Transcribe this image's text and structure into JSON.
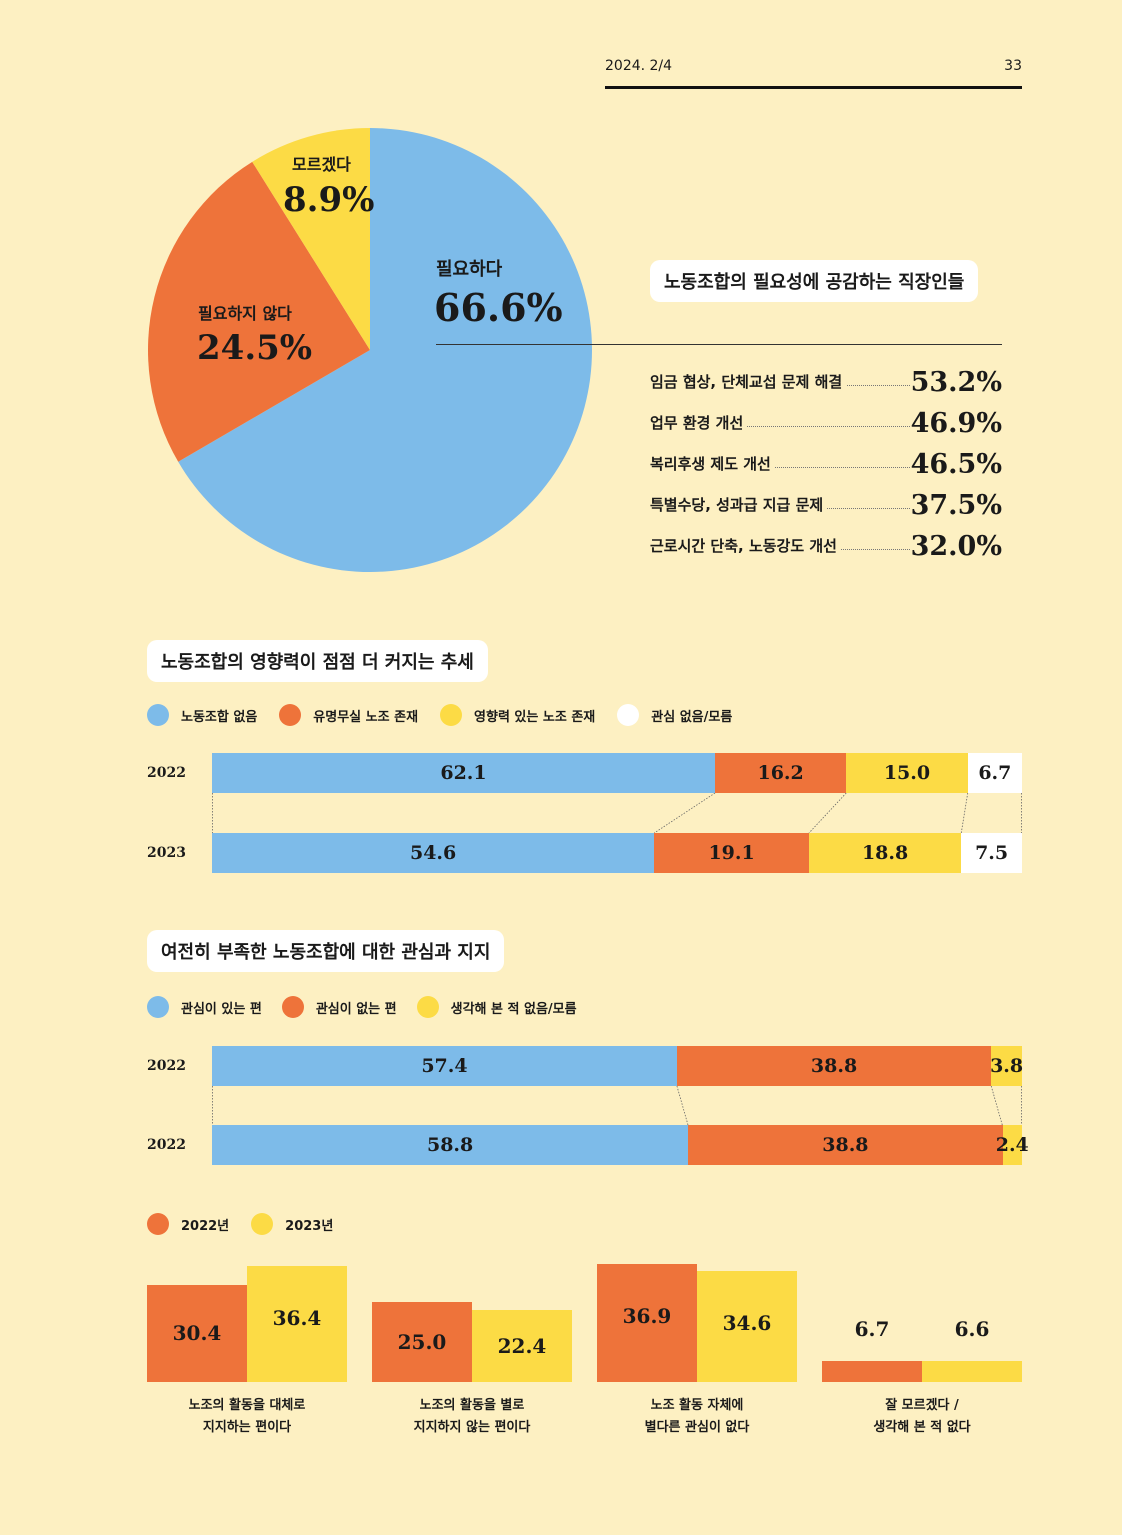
{
  "header": {
    "date": "2024. 2/4",
    "page": "33"
  },
  "colors": {
    "blue": "#7dbbe9",
    "orange": "#ee733a",
    "yellow": "#fcdb45",
    "white": "#ffffff"
  },
  "pie": {
    "title": "노동조합의 필요성에 공감하는 직장인들",
    "chart_type": "pie",
    "slices": [
      {
        "label": "필요하다",
        "display": "66.6%",
        "value": 66.6,
        "color": "#7dbbe9"
      },
      {
        "label": "필요하지 않다",
        "display": "24.5%",
        "value": 24.5,
        "color": "#ee733a"
      },
      {
        "label": "모르겠다",
        "display": "8.9%",
        "value": 8.9,
        "color": "#fcdb45"
      }
    ]
  },
  "reasons": [
    {
      "label": "임금 협상, 단체교섭 문제 해결",
      "display": "53.2%"
    },
    {
      "label": "업무 환경 개선",
      "display": "46.9%"
    },
    {
      "label": "복리후생 제도 개선",
      "display": "46.5%"
    },
    {
      "label": "특별수당, 성과급 지급 문제",
      "display": "37.5%"
    },
    {
      "label": "근로시간 단축, 노동강도 개선",
      "display": "32.0%"
    }
  ],
  "influence": {
    "title": "노동조합의 영향력이 점점 더 커지는 추세",
    "chart_type": "stacked-bar",
    "legend": [
      "노동조합 없음",
      "유명무실 노조 존재",
      "영향력 있는  노조 존재",
      "관심 없음/모름"
    ],
    "rows": [
      {
        "year": "2022",
        "values": [
          62.1,
          16.2,
          15.0,
          6.7
        ],
        "labels": [
          "62.1",
          "16.2",
          "15.0",
          "6.7"
        ]
      },
      {
        "year": "2023",
        "values": [
          54.6,
          19.1,
          18.8,
          7.5
        ],
        "labels": [
          "54.6",
          "19.1",
          "18.8",
          "7.5"
        ]
      }
    ]
  },
  "interest": {
    "title": "여전히 부족한 노동조합에 대한 관심과 지지",
    "chart_type": "stacked-bar",
    "legend": [
      "관심이 있는 편",
      "관심이 없는 편",
      "생각해 본 적 없음/모름"
    ],
    "rows": [
      {
        "year": "2022",
        "values": [
          57.4,
          38.8,
          3.8
        ],
        "labels": [
          "57.4",
          "38.8",
          "3.8"
        ]
      },
      {
        "year": "2022",
        "values": [
          58.8,
          38.8,
          2.4
        ],
        "labels": [
          "58.8",
          "38.8",
          "2.4"
        ]
      }
    ]
  },
  "support": {
    "chart_type": "grouped-bar",
    "legend": [
      "2022년",
      "2023년"
    ],
    "groups": [
      {
        "caption": [
          "노조의 활동을 대체로",
          "지지하는 편이다"
        ],
        "values": [
          30.4,
          36.4
        ],
        "labels": [
          "30.4",
          "36.4"
        ]
      },
      {
        "caption": [
          "노조의 활동을 별로",
          "지지하지 않는 편이다"
        ],
        "values": [
          25.0,
          22.4
        ],
        "labels": [
          "25.0",
          "22.4"
        ]
      },
      {
        "caption": [
          "노조 활동 자체에",
          "별다른 관심이 없다"
        ],
        "values": [
          36.9,
          34.6
        ],
        "labels": [
          "36.9",
          "34.6"
        ]
      },
      {
        "caption": [
          "잘 모르겠다 /",
          "생각해 본 적 없다"
        ],
        "values": [
          6.7,
          6.6
        ],
        "labels": [
          "6.7",
          "6.6"
        ]
      }
    ]
  }
}
